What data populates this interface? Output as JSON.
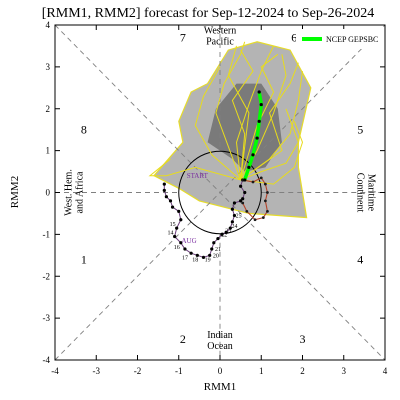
{
  "chart_data": {
    "type": "scatter",
    "title": "[RMM1, RMM2] forecast for Sep-12-2024 to Sep-26-2024",
    "xlabel": "RMM1",
    "ylabel": "RMM2",
    "xlim": [
      -4,
      4
    ],
    "ylim": [
      -4,
      4
    ],
    "xticks": [
      -4,
      -3,
      -2,
      -1,
      0,
      1,
      2,
      3,
      4
    ],
    "yticks": [
      -4,
      -3,
      -2,
      -1,
      0,
      1,
      2,
      3,
      4
    ],
    "legend": {
      "placement": "top-right",
      "entries": [
        {
          "label": "NCEP GEPSBC",
          "color": "#00ff00"
        }
      ]
    },
    "phase_numbers": [
      {
        "label": "1",
        "x": -3.3,
        "y": -1.6
      },
      {
        "label": "2",
        "x": -0.9,
        "y": -3.5
      },
      {
        "label": "3",
        "x": 2.0,
        "y": -3.5
      },
      {
        "label": "4",
        "x": 3.4,
        "y": -1.6
      },
      {
        "label": "5",
        "x": 3.4,
        "y": 1.5
      },
      {
        "label": "6",
        "x": 1.8,
        "y": 3.7
      },
      {
        "label": "7",
        "x": -0.9,
        "y": 3.7
      },
      {
        "label": "8",
        "x": -3.3,
        "y": 1.5
      }
    ],
    "regions": [
      {
        "label": "Western\nPacific",
        "x": 0,
        "y": 3.72
      },
      {
        "label": "Indian\nOcean",
        "x": 0,
        "y": -3.55
      },
      {
        "label": "West. Hem.\nand Africa",
        "x": -3.55,
        "y": 0,
        "rotate": -90
      },
      {
        "label": "Maritime\nContinent",
        "x": 3.55,
        "y": 0,
        "rotate": 90
      }
    ],
    "annotations": [
      {
        "label": "START",
        "x": -0.55,
        "y": 0.35,
        "color": "#7b2fa0"
      },
      {
        "label": "AUG",
        "x": -0.75,
        "y": -1.2,
        "color": "#7b2fa0"
      }
    ],
    "ensemble_outer": [
      [
        -1.6,
        0.4
      ],
      [
        -0.9,
        1.2
      ],
      [
        -1.0,
        1.7
      ],
      [
        -0.7,
        2.4
      ],
      [
        -0.3,
        2.6
      ],
      [
        0.2,
        3.4
      ],
      [
        0.9,
        3.6
      ],
      [
        1.7,
        3.4
      ],
      [
        2.2,
        2.5
      ],
      [
        1.9,
        1.2
      ],
      [
        1.9,
        0.6
      ],
      [
        2.1,
        -0.6
      ],
      [
        0.7,
        -0.5
      ],
      [
        -0.5,
        -0.2
      ],
      [
        -1.0,
        0.1
      ]
    ],
    "ensemble_inner": [
      [
        -0.3,
        1.2
      ],
      [
        -0.1,
        2.0
      ],
      [
        0.4,
        2.6
      ],
      [
        1.0,
        2.6
      ],
      [
        1.4,
        2.0
      ],
      [
        1.5,
        1.2
      ],
      [
        1.1,
        0.6
      ],
      [
        0.6,
        0.5
      ],
      [
        0.3,
        0.8
      ]
    ],
    "ensemble_mean": [
      [
        0.6,
        0.3
      ],
      [
        0.7,
        0.6
      ],
      [
        0.8,
        0.9
      ],
      [
        0.9,
        1.3
      ],
      [
        0.95,
        1.7
      ],
      [
        1.0,
        2.1
      ],
      [
        0.95,
        2.4
      ]
    ],
    "member_tracks": [
      [
        [
          0.5,
          0.3
        ],
        [
          0.2,
          1.1
        ],
        [
          -0.1,
          1.9
        ],
        [
          0.1,
          2.6
        ],
        [
          0.5,
          3.3
        ],
        [
          0.6,
          3.6
        ]
      ],
      [
        [
          0.5,
          0.3
        ],
        [
          0.9,
          1.0
        ],
        [
          1.3,
          1.9
        ],
        [
          1.6,
          2.8
        ],
        [
          1.5,
          3.3
        ]
      ],
      [
        [
          0.5,
          0.3
        ],
        [
          0.4,
          1.2
        ],
        [
          0.7,
          2.1
        ],
        [
          1.0,
          2.9
        ],
        [
          1.3,
          3.5
        ]
      ],
      [
        [
          0.5,
          0.3
        ],
        [
          1.2,
          0.8
        ],
        [
          1.7,
          1.4
        ],
        [
          1.9,
          2.2
        ],
        [
          2.0,
          2.9
        ]
      ],
      [
        [
          0.5,
          0.3
        ],
        [
          1.0,
          0.5
        ],
        [
          1.6,
          0.7
        ],
        [
          1.9,
          1.2
        ],
        [
          1.6,
          2.0
        ]
      ],
      [
        [
          0.5,
          0.3
        ],
        [
          -0.2,
          0.9
        ],
        [
          -0.6,
          1.6
        ],
        [
          -0.4,
          2.3
        ],
        [
          0.0,
          3.0
        ]
      ],
      [
        [
          0.5,
          0.3
        ],
        [
          0.6,
          1.4
        ],
        [
          0.3,
          2.2
        ],
        [
          0.8,
          2.9
        ],
        [
          0.5,
          3.4
        ]
      ],
      [
        [
          0.5,
          0.3
        ],
        [
          0.9,
          1.6
        ],
        [
          1.3,
          2.4
        ],
        [
          1.0,
          3.0
        ],
        [
          1.4,
          3.3
        ]
      ],
      [
        [
          0.5,
          0.3
        ],
        [
          -0.6,
          0.6
        ],
        [
          -1.3,
          0.4
        ],
        [
          -1.7,
          0.4
        ],
        [
          -1.2,
          0.8
        ]
      ],
      [
        [
          0.5,
          0.3
        ],
        [
          1.3,
          0.2
        ],
        [
          1.8,
          0.6
        ],
        [
          2.0,
          1.2
        ],
        [
          1.8,
          1.7
        ]
      ],
      [
        [
          0.5,
          0.3
        ],
        [
          0.7,
          1.9
        ],
        [
          0.2,
          2.8
        ],
        [
          0.4,
          3.5
        ]
      ],
      [
        [
          0.5,
          0.3
        ],
        [
          1.5,
          1.0
        ],
        [
          1.2,
          1.9
        ],
        [
          1.7,
          2.6
        ],
        [
          1.9,
          3.1
        ]
      ]
    ],
    "observed_track": [
      [
        -1.35,
        0.2
      ],
      [
        -1.35,
        0.05
      ],
      [
        -1.3,
        -0.1
      ],
      [
        -1.2,
        -0.2
      ],
      [
        -1.15,
        -0.35
      ],
      [
        -1.0,
        -0.45
      ],
      [
        -0.95,
        -0.65
      ],
      [
        -1.05,
        -0.85
      ],
      [
        -1.1,
        -1.05
      ],
      [
        -0.95,
        -1.2
      ],
      [
        -0.85,
        -1.35
      ],
      [
        -0.7,
        -1.45
      ],
      [
        -0.55,
        -1.5
      ],
      [
        -0.4,
        -1.55
      ],
      [
        -0.25,
        -1.5
      ],
      [
        -0.2,
        -1.35
      ],
      [
        -0.15,
        -1.2
      ],
      [
        -0.05,
        -1.1
      ],
      [
        0.05,
        -1.0
      ],
      [
        0.15,
        -0.95
      ],
      [
        0.25,
        -0.85
      ],
      [
        0.3,
        -0.7
      ],
      [
        0.35,
        -0.55
      ],
      [
        0.3,
        -0.4
      ],
      [
        0.35,
        -0.25
      ],
      [
        0.5,
        -0.2
      ],
      [
        0.55,
        -0.15
      ],
      [
        0.6,
        0.0
      ],
      [
        0.5,
        0.15
      ],
      [
        0.55,
        0.3
      ]
    ],
    "tail_track": [
      [
        0.55,
        0.3
      ],
      [
        0.8,
        0.25
      ],
      [
        1.0,
        0.35
      ],
      [
        1.1,
        0.2
      ],
      [
        1.15,
        0.0
      ],
      [
        1.1,
        -0.2
      ],
      [
        1.15,
        -0.45
      ],
      [
        1.05,
        -0.6
      ],
      [
        0.85,
        -0.65
      ],
      [
        0.65,
        -0.45
      ],
      [
        0.55,
        -0.25
      ]
    ],
    "day_labels": [
      {
        "label": "14",
        "x": -1.2,
        "y": -1.0
      },
      {
        "label": "15",
        "x": -1.15,
        "y": -0.8
      },
      {
        "label": "16",
        "x": -1.05,
        "y": -1.35
      },
      {
        "label": "17",
        "x": -0.85,
        "y": -1.6
      },
      {
        "label": "18",
        "x": -0.6,
        "y": -1.65
      },
      {
        "label": "19",
        "x": -0.3,
        "y": -1.65
      },
      {
        "label": "20",
        "x": -0.1,
        "y": -1.55
      },
      {
        "label": "21",
        "x": -0.05,
        "y": -1.4
      },
      {
        "label": "22",
        "x": 0.1,
        "y": -1.05
      },
      {
        "label": "23",
        "x": 0.2,
        "y": -0.95
      },
      {
        "label": "24",
        "x": 0.35,
        "y": -0.85
      },
      {
        "label": "25",
        "x": 0.45,
        "y": -0.6
      }
    ]
  }
}
